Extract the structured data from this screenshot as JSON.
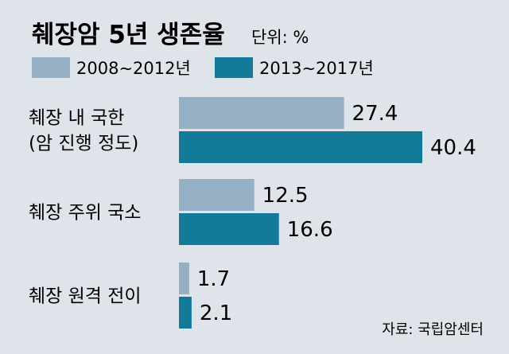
{
  "chart_data": {
    "type": "bar",
    "orientation": "horizontal",
    "title": "췌장암 5년 생존율",
    "unit": "단위: %",
    "categories": [
      [
        "췌장 내 국한",
        "(암 진행 정도)"
      ],
      [
        "췌장 주위 국소"
      ],
      [
        "췌장 원격 전이"
      ]
    ],
    "series": [
      {
        "name": "2008∼2012년",
        "color": "#95afc5",
        "values": [
          27.4,
          12.5,
          1.7
        ],
        "labels": [
          "27.4",
          "12.5",
          "1.7"
        ]
      },
      {
        "name": "2013∼2017년",
        "color": "#137a9a",
        "values": [
          40.4,
          16.6,
          2.1
        ],
        "labels": [
          "40.4",
          "16.6",
          "2.1"
        ]
      }
    ],
    "xlim": [
      0,
      40.4
    ],
    "grid": false,
    "legend": "top-left",
    "source": "자료: 국립암센터"
  }
}
